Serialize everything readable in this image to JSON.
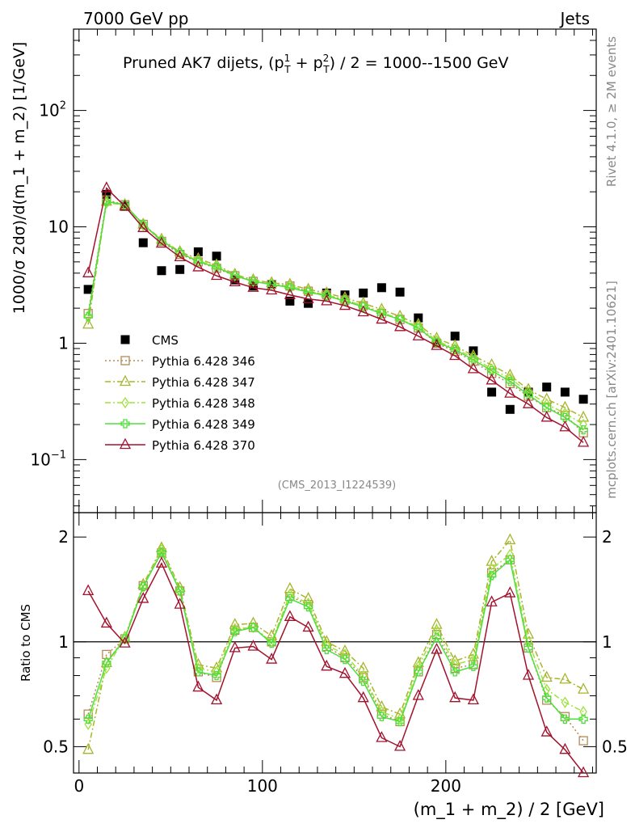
{
  "header": {
    "left": "7000 GeV pp",
    "right": "Jets"
  },
  "side_labels": {
    "rivet": "Rivet 4.1.0, ≥ 2M events",
    "mcplots": "mcplots.cern.ch [arXiv:2401.10621]"
  },
  "colors": {
    "CMS": "#000000",
    "p346": "#b58a56",
    "p347": "#a8b52c",
    "p348": "#9fe23c",
    "p349": "#4de03a",
    "p370": "#a2122d"
  },
  "chart_data": [
    {
      "type": "line",
      "panel": "main",
      "title_prefix": "Pruned AK7 dijets, (p",
      "title_sup1": "1",
      "title_sub1": "T",
      "title_mid": " + p",
      "title_sup2": "2",
      "title_sub2": "T",
      "title_suffix": ") / 2 = 1000--1500 GeV",
      "ylabel": "1000/σ  2dσ)/d(m_1 + m_2) [1/GeV]",
      "yscale": "log",
      "ylim": [
        0.035,
        500
      ],
      "xlim": [
        -3,
        282
      ],
      "yticks": [
        {
          "value": 100,
          "label": "10",
          "sup": "2"
        },
        {
          "value": 10,
          "label": "10",
          "sup": ""
        },
        {
          "value": 1,
          "label": "1",
          "sup": ""
        },
        {
          "value": 0.1,
          "label": "10",
          "sup": "−1"
        }
      ],
      "watermark": "(CMS_2013_I1224539)",
      "x": [
        5,
        15,
        25,
        35,
        45,
        55,
        65,
        75,
        85,
        95,
        105,
        115,
        125,
        135,
        145,
        155,
        165,
        175,
        185,
        195,
        205,
        215,
        225,
        235,
        245,
        255,
        265,
        275
      ],
      "series": [
        {
          "name": "CMS",
          "key": "CMS",
          "marker": "square",
          "line": "none",
          "values": [
            2.9,
            19.0,
            15.0,
            7.3,
            4.2,
            4.3,
            6.1,
            5.6,
            3.5,
            3.1,
            3.2,
            2.3,
            2.2,
            2.7,
            2.6,
            2.7,
            3.0,
            2.75,
            1.65,
            1.0,
            1.15,
            0.86,
            0.38,
            0.27,
            0.38,
            0.42,
            0.38,
            0.33
          ]
        },
        {
          "name": "Pythia 6.428 346",
          "key": "p346",
          "marker": "square-open",
          "line": "dotted",
          "values": [
            1.8,
            17.0,
            15.5,
            10.5,
            7.5,
            5.8,
            5.0,
            4.4,
            3.8,
            3.4,
            3.2,
            3.1,
            2.8,
            2.6,
            2.35,
            2.1,
            1.8,
            1.6,
            1.35,
            1.0,
            0.85,
            0.7,
            0.55,
            0.45,
            0.35,
            0.28,
            0.24,
            0.17
          ]
        },
        {
          "name": "Pythia 6.428 347",
          "key": "p347",
          "marker": "triangle-open",
          "line": "dashdot",
          "values": [
            1.45,
            16.5,
            15.5,
            10.5,
            7.8,
            6.1,
            5.3,
            4.7,
            3.9,
            3.5,
            3.3,
            3.2,
            2.9,
            2.7,
            2.45,
            2.2,
            1.95,
            1.7,
            1.45,
            1.1,
            0.95,
            0.78,
            0.65,
            0.53,
            0.4,
            0.33,
            0.28,
            0.23
          ]
        },
        {
          "name": "Pythia 6.428 348",
          "key": "p348",
          "marker": "diamond-open",
          "line": "dashdot",
          "values": [
            1.7,
            16.0,
            15.5,
            10.3,
            7.7,
            6.0,
            5.1,
            4.6,
            3.8,
            3.4,
            3.2,
            3.1,
            2.8,
            2.6,
            2.35,
            2.1,
            1.85,
            1.6,
            1.4,
            1.05,
            0.9,
            0.75,
            0.6,
            0.5,
            0.38,
            0.3,
            0.25,
            0.2
          ]
        },
        {
          "name": "Pythia 6.428 349",
          "key": "p349",
          "marker": "plus-open",
          "line": "solid",
          "values": [
            1.7,
            16.5,
            15.5,
            10.5,
            7.6,
            6.0,
            5.0,
            4.5,
            3.8,
            3.4,
            3.2,
            3.0,
            2.75,
            2.55,
            2.3,
            2.05,
            1.8,
            1.6,
            1.35,
            1.02,
            0.88,
            0.72,
            0.58,
            0.47,
            0.36,
            0.28,
            0.23,
            0.18
          ]
        },
        {
          "name": "Pythia 6.428 370",
          "key": "p370",
          "marker": "triangle-open",
          "line": "solid",
          "values": [
            4.0,
            21.5,
            15.0,
            9.8,
            7.2,
            5.5,
            4.5,
            3.8,
            3.35,
            3.0,
            2.85,
            2.6,
            2.4,
            2.3,
            2.1,
            1.85,
            1.6,
            1.38,
            1.15,
            0.95,
            0.78,
            0.6,
            0.48,
            0.37,
            0.3,
            0.23,
            0.19,
            0.14
          ]
        }
      ]
    },
    {
      "type": "line",
      "panel": "ratio",
      "ylabel": "Ratio to CMS",
      "xlabel": "(m_1 + m_2) / 2 [GeV]",
      "yscale": "log",
      "ylim": [
        0.42,
        2.35
      ],
      "xlim": [
        -3,
        282
      ],
      "yticks": [
        {
          "value": 2,
          "label": "2"
        },
        {
          "value": 1,
          "label": "1"
        },
        {
          "value": 0.5,
          "label": "0.5"
        }
      ],
      "xticks": [
        {
          "value": 0,
          "label": "0"
        },
        {
          "value": 100,
          "label": "100"
        },
        {
          "value": 200,
          "label": "200"
        }
      ],
      "reference": 1,
      "x": [
        5,
        15,
        25,
        35,
        45,
        55,
        65,
        75,
        85,
        95,
        105,
        115,
        125,
        135,
        145,
        155,
        165,
        175,
        185,
        195,
        205,
        215,
        225,
        235,
        245,
        255,
        265,
        275
      ],
      "series": [
        {
          "name": "Pythia 6.428 346",
          "key": "p346",
          "marker": "square-open",
          "line": "dotted",
          "values": [
            0.62,
            0.92,
            1.02,
            1.45,
            1.8,
            1.4,
            0.82,
            0.79,
            1.08,
            1.1,
            1.0,
            1.35,
            1.28,
            0.97,
            0.9,
            0.79,
            0.62,
            0.59,
            0.82,
            1.05,
            0.84,
            0.86,
            1.58,
            1.72,
            0.96,
            0.68,
            0.61,
            0.52
          ]
        },
        {
          "name": "Pythia 6.428 347",
          "key": "p347",
          "marker": "triangle-open",
          "line": "dashdot",
          "values": [
            0.49,
            0.87,
            1.03,
            1.46,
            1.86,
            1.43,
            0.86,
            0.84,
            1.12,
            1.13,
            1.04,
            1.42,
            1.33,
            1.0,
            0.94,
            0.84,
            0.65,
            0.62,
            0.87,
            1.12,
            0.88,
            0.92,
            1.7,
            1.96,
            1.05,
            0.79,
            0.78,
            0.73
          ]
        },
        {
          "name": "Pythia 6.428 348",
          "key": "p348",
          "marker": "diamond-open",
          "line": "dashdot",
          "values": [
            0.58,
            0.84,
            1.03,
            1.44,
            1.84,
            1.4,
            0.84,
            0.82,
            1.09,
            1.1,
            1.0,
            1.37,
            1.29,
            0.98,
            0.92,
            0.8,
            0.63,
            0.6,
            0.85,
            1.08,
            0.86,
            0.89,
            1.62,
            1.78,
            1.0,
            0.73,
            0.67,
            0.63
          ]
        },
        {
          "name": "Pythia 6.428 349",
          "key": "p349",
          "marker": "plus-open",
          "line": "solid",
          "values": [
            0.6,
            0.87,
            1.02,
            1.44,
            1.81,
            1.4,
            0.82,
            0.8,
            1.07,
            1.1,
            0.99,
            1.33,
            1.26,
            0.95,
            0.89,
            0.77,
            0.61,
            0.59,
            0.82,
            1.03,
            0.82,
            0.85,
            1.55,
            1.72,
            0.96,
            0.69,
            0.6,
            0.6
          ]
        },
        {
          "name": "Pythia 6.428 370",
          "key": "p370",
          "marker": "triangle-open",
          "line": "solid",
          "values": [
            1.4,
            1.13,
            0.99,
            1.33,
            1.68,
            1.28,
            0.74,
            0.68,
            0.96,
            0.97,
            0.89,
            1.18,
            1.1,
            0.85,
            0.81,
            0.69,
            0.53,
            0.5,
            0.7,
            0.95,
            0.69,
            0.68,
            1.3,
            1.38,
            0.8,
            0.55,
            0.49,
            0.42
          ]
        }
      ]
    }
  ]
}
